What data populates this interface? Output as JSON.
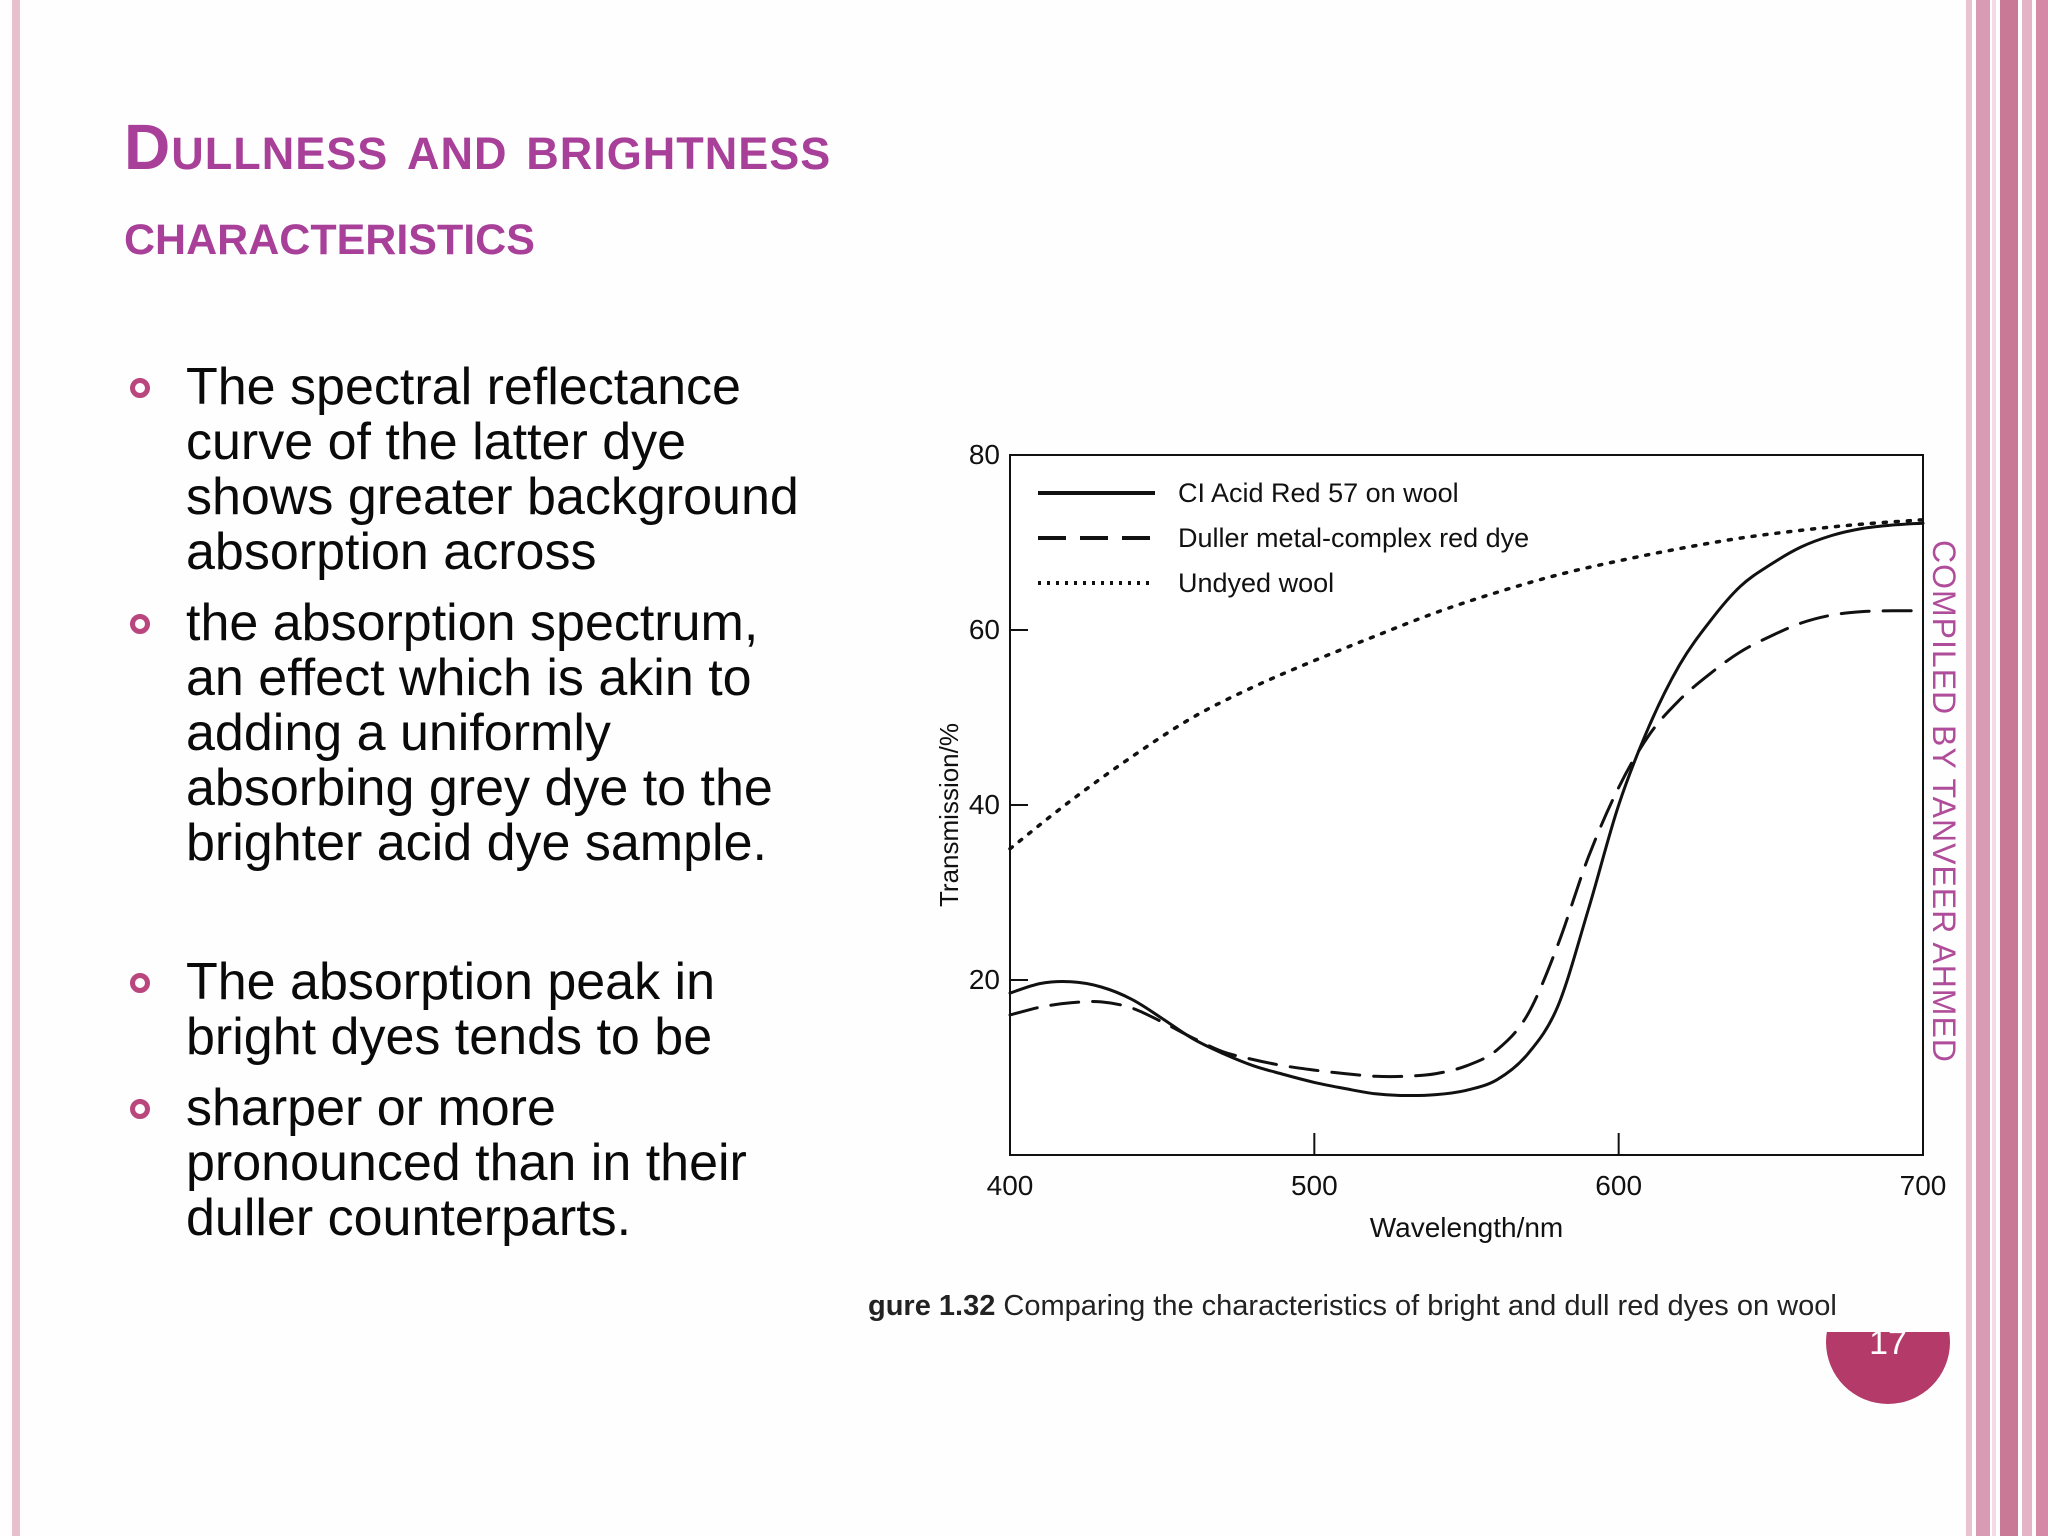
{
  "slide": {
    "title_line1": "Dullness and brightness",
    "title_line2": "characteristics",
    "bullets": [
      "The spectral reflectance curve of the latter dye shows greater background absorption across",
      "the absorption spectrum, an effect which is akin to adding a uniformly absorbing grey dye to the brighter acid dye sample.",
      "The absorption peak in bright dyes tends to be",
      "sharper or more pronounced than in their duller counterparts."
    ],
    "sidebar": "COMPILED BY TANVEER AHMED",
    "page_number": "17",
    "accent_color": "#a8409a",
    "bullet_color": "#b9467d"
  },
  "chart_data": {
    "type": "line",
    "xlabel": "Wavelength/nm",
    "ylabel": "Transmission/%",
    "xlim": [
      400,
      700
    ],
    "ylim": [
      0,
      80
    ],
    "x_ticks": [
      400,
      500,
      600,
      700
    ],
    "y_ticks": [
      20,
      40,
      60,
      80
    ],
    "legend_position": "top-left",
    "caption_prefix": "gure 1.32",
    "caption_text": " Comparing the characteristics of bright and dull red dyes on wool",
    "series": [
      {
        "name": "CI  Acid Red 57 on wool",
        "style": "solid",
        "x": [
          400,
          410,
          420,
          430,
          440,
          450,
          460,
          470,
          480,
          490,
          500,
          510,
          520,
          530,
          540,
          550,
          560,
          570,
          580,
          590,
          600,
          610,
          620,
          630,
          640,
          650,
          660,
          670,
          680,
          690,
          700
        ],
        "y": [
          18.5,
          19.6,
          19.8,
          19.2,
          17.8,
          15.6,
          13.3,
          11.6,
          10.2,
          9.2,
          8.3,
          7.6,
          7.0,
          6.8,
          6.9,
          7.4,
          8.6,
          11.5,
          17.0,
          28.0,
          40.0,
          49.0,
          56.0,
          61.0,
          65.0,
          67.5,
          69.5,
          70.8,
          71.6,
          72.0,
          72.2
        ]
      },
      {
        "name": "Duller metal-complex red dye",
        "style": "dashed",
        "x": [
          400,
          410,
          420,
          430,
          440,
          450,
          460,
          470,
          480,
          490,
          500,
          510,
          520,
          530,
          540,
          550,
          560,
          570,
          580,
          590,
          600,
          610,
          620,
          630,
          640,
          650,
          660,
          670,
          680,
          690,
          700
        ],
        "y": [
          16.0,
          16.9,
          17.4,
          17.5,
          16.8,
          15.2,
          13.4,
          11.8,
          10.9,
          10.2,
          9.7,
          9.3,
          9.0,
          9.0,
          9.3,
          10.2,
          12.0,
          16.0,
          24.0,
          34.0,
          42.0,
          48.0,
          52.0,
          55.0,
          57.5,
          59.3,
          60.8,
          61.7,
          62.1,
          62.2,
          62.2
        ]
      },
      {
        "name": "Undyed wool",
        "style": "dotted",
        "x": [
          400,
          420,
          440,
          460,
          480,
          500,
          520,
          540,
          560,
          580,
          600,
          620,
          640,
          660,
          680,
          700
        ],
        "y": [
          35.0,
          40.5,
          45.5,
          50.0,
          53.5,
          56.5,
          59.3,
          62.0,
          64.3,
          66.3,
          67.9,
          69.3,
          70.5,
          71.4,
          72.1,
          72.6
        ]
      }
    ]
  }
}
